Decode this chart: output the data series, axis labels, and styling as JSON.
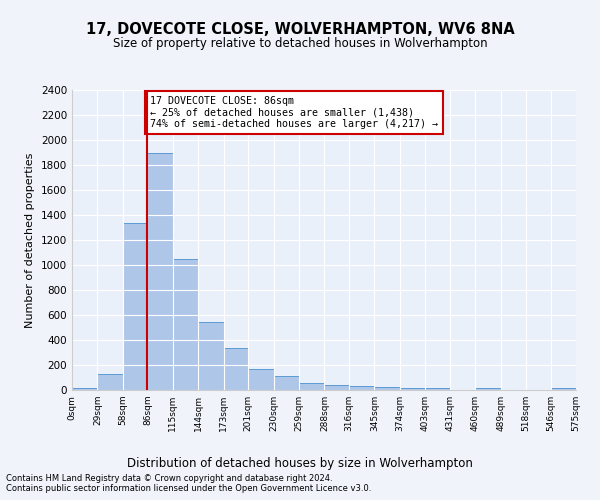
{
  "title1": "17, DOVECOTE CLOSE, WOLVERHAMPTON, WV6 8NA",
  "title2": "Size of property relative to detached houses in Wolverhampton",
  "xlabel": "Distribution of detached houses by size in Wolverhampton",
  "ylabel": "Number of detached properties",
  "bar_values": [
    15,
    125,
    1340,
    1900,
    1045,
    545,
    335,
    165,
    110,
    60,
    40,
    30,
    25,
    15,
    15,
    0,
    20,
    0,
    0,
    15
  ],
  "bin_edges": [
    0,
    29,
    58,
    86,
    115,
    144,
    173,
    201,
    230,
    259,
    288,
    316,
    345,
    374,
    403,
    431,
    460,
    489,
    518,
    546,
    575
  ],
  "tick_labels": [
    "0sqm",
    "29sqm",
    "58sqm",
    "86sqm",
    "115sqm",
    "144sqm",
    "173sqm",
    "201sqm",
    "230sqm",
    "259sqm",
    "288sqm",
    "316sqm",
    "345sqm",
    "374sqm",
    "403sqm",
    "431sqm",
    "460sqm",
    "489sqm",
    "518sqm",
    "546sqm",
    "575sqm"
  ],
  "bar_color": "#aec6e8",
  "bar_edge_color": "#5b9bd5",
  "vline_x": 86,
  "vline_color": "#cc0000",
  "ylim": [
    0,
    2400
  ],
  "yticks": [
    0,
    200,
    400,
    600,
    800,
    1000,
    1200,
    1400,
    1600,
    1800,
    2000,
    2200,
    2400
  ],
  "annotation_title": "17 DOVECOTE CLOSE: 86sqm",
  "annotation_line1": "← 25% of detached houses are smaller (1,438)",
  "annotation_line2": "74% of semi-detached houses are larger (4,217) →",
  "annotation_box_color": "#cc0000",
  "footer1": "Contains HM Land Registry data © Crown copyright and database right 2024.",
  "footer2": "Contains public sector information licensed under the Open Government Licence v3.0.",
  "bg_color": "#f0f4fa",
  "plot_bg_color": "#eaf0fa"
}
